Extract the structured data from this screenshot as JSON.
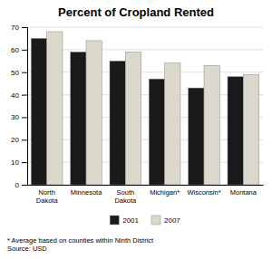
{
  "chart_data": {
    "type": "bar",
    "title": "Percent of Cropland Rented",
    "categories": [
      "North\nDakota",
      "Minnesota",
      "South\nDakota",
      "Michigan*",
      "Wisconsin*",
      "Montana"
    ],
    "series": [
      {
        "name": "2001",
        "color": "#1a1a1a",
        "values": [
          65,
          59,
          55,
          47,
          43,
          48
        ]
      },
      {
        "name": "2007",
        "color": "#ddd8cc",
        "values": [
          68,
          64,
          59,
          54,
          53,
          49
        ]
      }
    ],
    "ylim": [
      0,
      70
    ],
    "yticks": [
      0,
      10,
      20,
      30,
      40,
      50,
      60,
      70
    ],
    "grid": true,
    "legend": "bottom",
    "annotations": [
      "* Average based on counties within Ninth District\nSource: USD"
    ]
  }
}
